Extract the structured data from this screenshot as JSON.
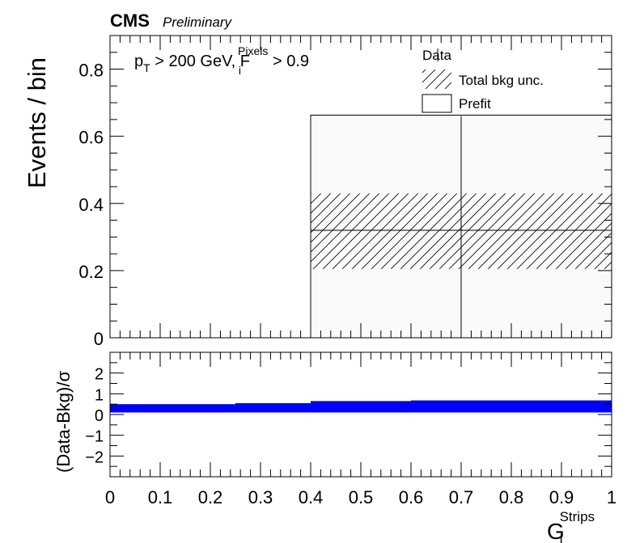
{
  "header": {
    "experiment": "CMS",
    "status": "Preliminary"
  },
  "annotation": {
    "p_symbol": "p",
    "p_sub": "T",
    "cut1": " > 200 GeV, ",
    "f_symbol": "F",
    "f_sub": "i",
    "f_sup": "Pixels",
    "cut2": " > 0.9"
  },
  "chart_data": [
    {
      "type": "bar",
      "panel": "main",
      "ylabel": "Events / bin",
      "xlim": [
        0,
        1
      ],
      "ylim": [
        0,
        0.9
      ],
      "yticks": [
        "0",
        "0.2",
        "0.4",
        "0.6",
        "0.8"
      ],
      "bins": [
        {
          "x_low": 0.0,
          "x_high": 0.4,
          "prefit": 0.0,
          "total_bkg": 0.0,
          "unc_low": 0.0,
          "unc_high": 0.0
        },
        {
          "x_low": 0.4,
          "x_high": 1.0,
          "prefit": 0.663,
          "total_bkg": 0.32,
          "unc_low": 0.205,
          "unc_high": 0.43
        }
      ],
      "data_points": [
        {
          "x": 0.7,
          "y": 0.0,
          "err_up": 0.66,
          "err_down": 0.0
        }
      ],
      "legend": {
        "placement": "top-right",
        "entries": [
          {
            "label": "Data",
            "style": "errorbar"
          },
          {
            "label": "Total bkg unc.",
            "style": "hatched"
          },
          {
            "label": "Prefit",
            "style": "box"
          }
        ]
      }
    },
    {
      "type": "area",
      "panel": "ratio",
      "ylabel": "(Data-Bkg)/σ",
      "xlabel_main": "G",
      "xlabel_sub": "i",
      "xlabel_sup": "Strips",
      "xlim": [
        0,
        1
      ],
      "ylim": [
        -3,
        3
      ],
      "yticks": [
        "−2",
        "−1",
        "0",
        "1",
        "2"
      ],
      "xticks": [
        "0",
        "0.1",
        "0.2",
        "0.3",
        "0.4",
        "0.5",
        "0.6",
        "0.7",
        "0.8",
        "0.9",
        "1"
      ],
      "color": "#0000ff",
      "band": [
        {
          "x_low": 0.0,
          "x_high": 0.25,
          "low": 0.1,
          "high": 0.5
        },
        {
          "x_low": 0.25,
          "x_high": 0.4,
          "low": 0.1,
          "high": 0.55
        },
        {
          "x_low": 0.4,
          "x_high": 0.6,
          "low": 0.1,
          "high": 0.65
        },
        {
          "x_low": 0.6,
          "x_high": 1.0,
          "low": 0.1,
          "high": 0.68
        }
      ]
    }
  ]
}
